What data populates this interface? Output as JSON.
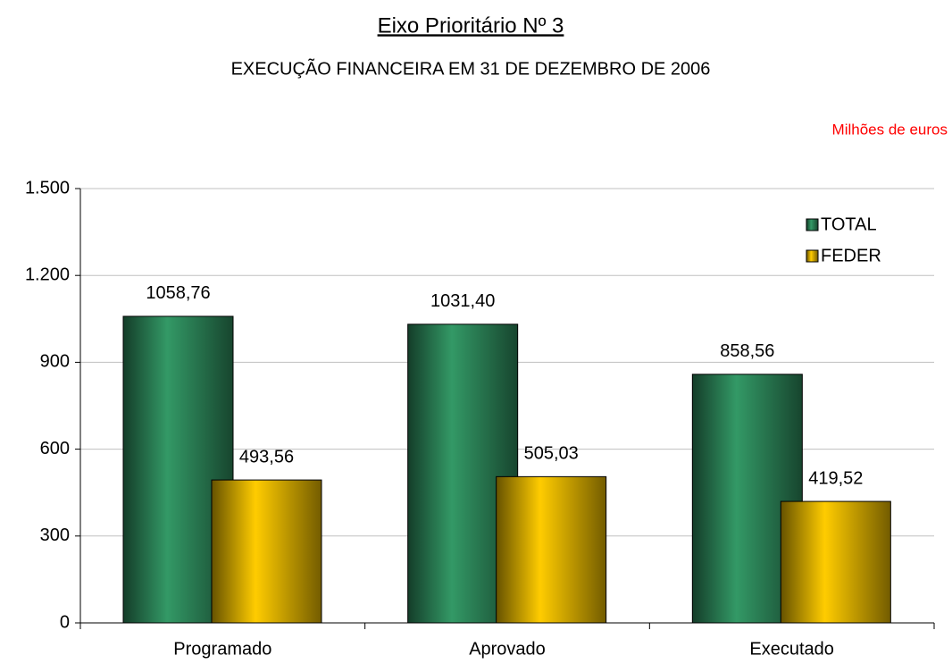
{
  "chart_data": {
    "type": "bar",
    "title": "Eixo Prioritário Nº 3",
    "subtitle": "EXECUÇÃO FINANCEIRA EM 31 DE DEZEMBRO DE 2006",
    "unit_label": "Milhões de euros",
    "categories": [
      "Programado",
      "Aprovado",
      "Executado"
    ],
    "series": [
      {
        "name": "TOTAL",
        "color": "#339966",
        "values": [
          1058.76,
          1031.4,
          858.56
        ],
        "value_labels": [
          "1058,76",
          "1031,40",
          "858,56"
        ]
      },
      {
        "name": "FEDER",
        "color": "#ffcc00",
        "values": [
          493.56,
          505.03,
          419.52
        ],
        "value_labels": [
          "493,56",
          "505,03",
          "419,52"
        ]
      }
    ],
    "ylim": [
      0,
      1500
    ],
    "yticks": [
      0,
      300,
      600,
      900,
      {
        "value": 1200,
        "label": "1.200"
      },
      {
        "value": 1500,
        "label": "1.500"
      }
    ],
    "grid": true,
    "legend": "upper right"
  }
}
